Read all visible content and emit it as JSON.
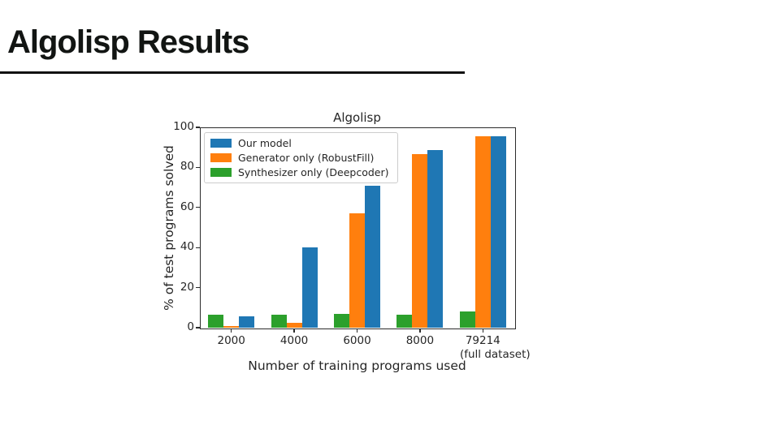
{
  "slide": {
    "title": "Algolisp Results"
  },
  "chart_data": {
    "type": "bar",
    "title": "Algolisp",
    "xlabel": "Number of training programs used",
    "ylabel": "% of test programs solved",
    "categories": [
      "2000",
      "4000",
      "6000",
      "8000",
      "79214"
    ],
    "last_category_note": "(full dataset)",
    "y_ticks": [
      0,
      20,
      40,
      60,
      80,
      100
    ],
    "ylim": [
      0,
      100
    ],
    "grid": false,
    "legend_position": "upper-left",
    "series": [
      {
        "name": "Our model",
        "color": "#1f77b4",
        "values": [
          5.5,
          40,
          71,
          88.5,
          95.5
        ]
      },
      {
        "name": "Generator only (RobustFill)",
        "color": "#ff7f0e",
        "values": [
          1,
          2.5,
          57,
          86.5,
          95.5
        ]
      },
      {
        "name": "Synthesizer only (Deepcoder)",
        "color": "#2ca02c",
        "values": [
          6.5,
          6.5,
          7,
          6.5,
          8
        ]
      }
    ],
    "bar_draw_order": [
      2,
      1,
      0
    ]
  }
}
